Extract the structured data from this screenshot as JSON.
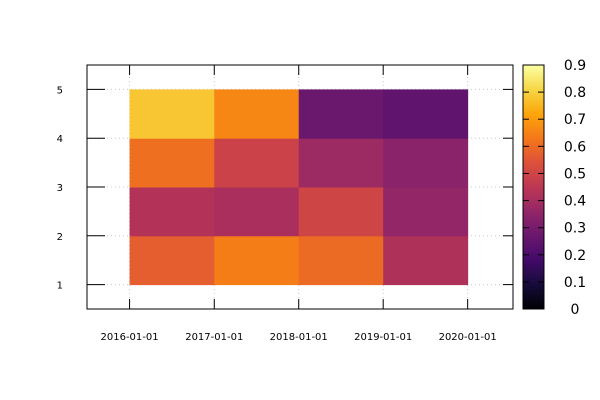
{
  "chart_data": {
    "type": "heatmap",
    "title": "",
    "xlabel": "",
    "ylabel": "",
    "x_ticks": [
      "2016-01-01",
      "2017-01-01",
      "2018-01-01",
      "2019-01-01",
      "2020-01-01"
    ],
    "y_ticks": [
      "1",
      "2",
      "3",
      "4",
      "5"
    ],
    "xlim": [
      "2015-07-01",
      "2020-07-15"
    ],
    "ylim": [
      0.5,
      5.5
    ],
    "x_edges": [
      "2016-01-01",
      "2017-01-01",
      "2018-01-01",
      "2019-01-01",
      "2020-01-01"
    ],
    "y_edges": [
      1,
      2,
      3,
      4,
      5
    ],
    "rows": [
      {
        "y_range": [
          1,
          2
        ],
        "values": [
          0.57,
          0.64,
          0.6,
          0.42
        ]
      },
      {
        "y_range": [
          2,
          3
        ],
        "values": [
          0.43,
          0.41,
          0.5,
          0.36
        ]
      },
      {
        "y_range": [
          3,
          4
        ],
        "values": [
          0.61,
          0.49,
          0.38,
          0.34
        ]
      },
      {
        "y_range": [
          4,
          5
        ],
        "values": [
          0.78,
          0.66,
          0.27,
          0.25
        ]
      }
    ],
    "colorbar": {
      "colormap": "inferno",
      "range": [
        0,
        0.9
      ],
      "ticks": [
        "0",
        "0.1",
        "0.2",
        "0.3",
        "0.4",
        "0.5",
        "0.6",
        "0.7",
        "0.8",
        "0.9"
      ]
    },
    "grid": true
  }
}
